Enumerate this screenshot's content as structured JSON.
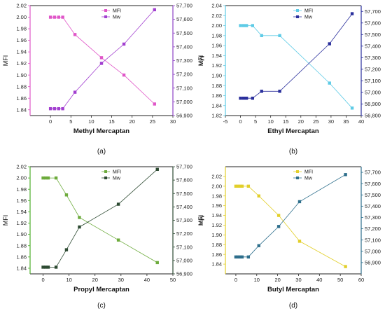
{
  "chart_data": [
    {
      "type": "line",
      "panel_label": "(a)",
      "xlabel": "Methyl Mercaptan",
      "ylabel_left": "MFI",
      "ylabel_right": "Mw",
      "color_left": "#e056c8",
      "color_right": "#a23fd0",
      "color_left_frame": "#e056c8",
      "color_right_frame": "#8e44c6",
      "xlim": [
        -5,
        30
      ],
      "xticks": [
        0,
        5,
        10,
        15,
        20,
        25,
        30
      ],
      "ylim_left": [
        1.83,
        2.02
      ],
      "yticks_left": [
        1.84,
        1.86,
        1.88,
        1.9,
        1.92,
        1.94,
        1.96,
        1.98,
        2.0,
        2.02
      ],
      "ylim_right": [
        56900,
        57700
      ],
      "yticks_right": [
        56900,
        57000,
        57100,
        57200,
        57300,
        57400,
        57500,
        57600,
        57700
      ],
      "ytick_labels_right": [
        "56,900",
        "57,000",
        "57,100",
        "57,200",
        "57,300",
        "57,400",
        "57,500",
        "57,600",
        "57,700"
      ],
      "legend": [
        "MFI",
        "Mw"
      ],
      "series": [
        {
          "name": "MFI",
          "axis": "left",
          "x": [
            0,
            1,
            2,
            3,
            6,
            12.5,
            18,
            25.5
          ],
          "y": [
            2.0,
            2.0,
            2.0,
            2.0,
            1.97,
            1.93,
            1.9,
            1.85
          ]
        },
        {
          "name": "Mw",
          "axis": "right",
          "x": [
            0,
            1,
            2,
            3,
            6,
            12.5,
            18,
            25.5
          ],
          "y": [
            56950,
            56950,
            56950,
            56950,
            57070,
            57280,
            57420,
            57670
          ]
        }
      ]
    },
    {
      "type": "line",
      "panel_label": "(b)",
      "xlabel": "Ethyl Mercaptan",
      "ylabel_left": "MFI",
      "ylabel_right": "Mw",
      "color_left": "#5ecbe6",
      "color_right": "#2a2f9c",
      "color_left_frame": "#5ecbe6",
      "color_right_frame": "#2a2f9c",
      "xlim": [
        -5,
        40
      ],
      "xticks": [
        -5,
        0,
        5,
        10,
        15,
        20,
        25,
        30,
        35,
        40
      ],
      "ylim_left": [
        1.82,
        2.04
      ],
      "yticks_left": [
        1.82,
        1.84,
        1.86,
        1.88,
        1.9,
        1.92,
        1.94,
        1.96,
        1.98,
        2.0,
        2.02,
        2.04
      ],
      "ylim_right": [
        56800,
        57750
      ],
      "yticks_right": [
        56800,
        56900,
        57000,
        57100,
        57200,
        57300,
        57400,
        57500,
        57600,
        57700
      ],
      "ytick_labels_right": [
        "56,800",
        "56,900",
        "57,000",
        "57,100",
        "57,200",
        "57,300",
        "57,400",
        "57,500",
        "57,600",
        "57,700"
      ],
      "legend": [
        "MFI",
        "Mw"
      ],
      "series": [
        {
          "name": "MFI",
          "axis": "left",
          "x": [
            0,
            1,
            2,
            4,
            7,
            13,
            29.5,
            37
          ],
          "y": [
            2.0,
            2.0,
            2.0,
            2.0,
            1.98,
            1.98,
            1.885,
            1.835
          ]
        },
        {
          "name": "Mw",
          "axis": "right",
          "x": [
            0,
            1,
            2,
            4,
            7,
            13,
            29.5,
            37
          ],
          "y": [
            56950,
            56950,
            56950,
            56950,
            57010,
            57010,
            57420,
            57680
          ]
        }
      ]
    },
    {
      "type": "line",
      "panel_label": "(c)",
      "xlabel": "Propyl Mercaptan",
      "ylabel_left": "MFI",
      "ylabel_right": "Mw",
      "color_left": "#6dab3c",
      "color_right": "#2d4a32",
      "color_left_frame": "#4caf2b",
      "color_right_frame": "#2d4a32",
      "xlim": [
        -5,
        50
      ],
      "xticks": [
        0,
        10,
        20,
        30,
        40,
        50
      ],
      "ylim_left": [
        1.83,
        2.02
      ],
      "yticks_left": [
        1.84,
        1.86,
        1.88,
        1.9,
        1.92,
        1.94,
        1.96,
        1.98,
        2.0,
        2.02
      ],
      "ylim_right": [
        56900,
        57700
      ],
      "yticks_right": [
        56900,
        57000,
        57100,
        57200,
        57300,
        57400,
        57500,
        57600,
        57700
      ],
      "ytick_labels_right": [
        "56,900",
        "57,000",
        "57,100",
        "57,200",
        "57,300",
        "57,400",
        "57,500",
        "57,600",
        "57,700"
      ],
      "legend": [
        "MFI",
        "Mw"
      ],
      "series": [
        {
          "name": "MFI",
          "axis": "left",
          "x": [
            0,
            1,
            2,
            5,
            9,
            14,
            29,
            44
          ],
          "y": [
            2.0,
            2.0,
            2.0,
            2.0,
            1.97,
            1.93,
            1.89,
            1.85
          ]
        },
        {
          "name": "Mw",
          "axis": "right",
          "x": [
            0,
            1,
            2,
            5,
            9,
            14,
            29,
            44
          ],
          "y": [
            56950,
            56950,
            56950,
            56950,
            57080,
            57250,
            57420,
            57680
          ]
        }
      ]
    },
    {
      "type": "line",
      "panel_label": "(d)",
      "xlabel": "Butyl Mercaptan",
      "ylabel_left": "MFI",
      "ylabel_right": "Mw",
      "color_left": "#e2cf2a",
      "color_right": "#2e6f8c",
      "color_left_frame": "#e2cf2a",
      "color_right_frame": "#2e6f8c",
      "xlim": [
        -5,
        60
      ],
      "xticks": [
        0,
        10,
        20,
        30,
        40,
        50,
        60
      ],
      "ylim_left": [
        1.82,
        2.04
      ],
      "yticks_left": [
        1.84,
        1.86,
        1.88,
        1.9,
        1.92,
        1.94,
        1.96,
        1.98,
        2.0,
        2.02
      ],
      "ylim_right": [
        56800,
        57750
      ],
      "yticks_right": [
        56900,
        57000,
        57100,
        57200,
        57300,
        57400,
        57500,
        57600,
        57700
      ],
      "ytick_labels_right": [
        "56,900",
        "57,000",
        "57,100",
        "57,200",
        "57,300",
        "57,400",
        "57,500",
        "57,600",
        "57,700"
      ],
      "legend": [
        "MFI",
        "Mw"
      ],
      "series": [
        {
          "name": "MFI",
          "axis": "left",
          "x": [
            0,
            1,
            2,
            3,
            6,
            11,
            20.5,
            30.5,
            52.5
          ],
          "y": [
            2.0,
            2.0,
            2.0,
            2.0,
            2.0,
            1.98,
            1.94,
            1.887,
            1.835
          ]
        },
        {
          "name": "Mw",
          "axis": "right",
          "x": [
            0,
            1,
            2,
            3,
            6,
            11,
            20.5,
            30.5,
            52.5
          ],
          "y": [
            56950,
            56950,
            56950,
            56950,
            56950,
            57050,
            57220,
            57440,
            57680
          ]
        }
      ]
    }
  ]
}
